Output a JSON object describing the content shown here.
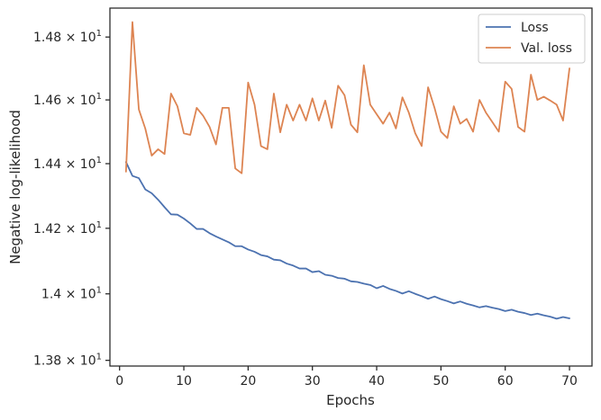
{
  "chart_data": {
    "type": "line",
    "title": "",
    "xlabel": "Epochs",
    "ylabel": "Negative log-likelihood",
    "xlim": [
      -1.5,
      73.5
    ],
    "ylim": [
      13.783,
      14.893
    ],
    "x_ticks": [
      0,
      10,
      20,
      30,
      40,
      50,
      60,
      70
    ],
    "x_tick_labels": [
      "0",
      "10",
      "20",
      "30",
      "40",
      "50",
      "60",
      "70"
    ],
    "y_ticks": [
      {
        "value": 13.8,
        "mantissa": "1.38",
        "exponent": "1"
      },
      {
        "value": 14.0,
        "mantissa": "1.4",
        "exponent": "1"
      },
      {
        "value": 14.2,
        "mantissa": "1.42",
        "exponent": "1"
      },
      {
        "value": 14.4,
        "mantissa": "1.44",
        "exponent": "1"
      },
      {
        "value": 14.6,
        "mantissa": "1.46",
        "exponent": "1"
      },
      {
        "value": 14.8,
        "mantissa": "1.48",
        "exponent": "1"
      }
    ],
    "y_scale": "log",
    "grid": false,
    "legend_position": "top-right",
    "series": [
      {
        "name": "Loss",
        "color": "#4c72b0",
        "x": [
          1,
          2,
          3,
          4,
          5,
          6,
          7,
          8,
          9,
          10,
          11,
          12,
          13,
          14,
          15,
          16,
          17,
          18,
          19,
          20,
          21,
          22,
          23,
          24,
          25,
          26,
          27,
          28,
          29,
          30,
          31,
          32,
          33,
          34,
          35,
          36,
          37,
          38,
          39,
          40,
          41,
          42,
          43,
          44,
          45,
          46,
          47,
          48,
          49,
          50,
          51,
          52,
          53,
          54,
          55,
          56,
          57,
          58,
          59,
          60,
          61,
          62,
          63,
          64,
          65,
          66,
          67,
          68,
          69,
          70
        ],
        "values": [
          14.405,
          14.362,
          14.355,
          14.32,
          14.308,
          14.288,
          14.265,
          14.243,
          14.242,
          14.23,
          14.215,
          14.198,
          14.198,
          14.185,
          14.175,
          14.166,
          14.157,
          14.145,
          14.145,
          14.135,
          14.128,
          14.118,
          14.114,
          14.104,
          14.102,
          14.092,
          14.086,
          14.077,
          14.077,
          14.066,
          14.069,
          14.058,
          14.055,
          14.048,
          14.046,
          14.038,
          14.036,
          14.031,
          14.027,
          14.017,
          14.024,
          14.015,
          14.009,
          14.001,
          14.008,
          14.0,
          13.993,
          13.985,
          13.992,
          13.984,
          13.978,
          13.971,
          13.977,
          13.97,
          13.965,
          13.959,
          13.963,
          13.958,
          13.954,
          13.948,
          13.952,
          13.946,
          13.942,
          13.936,
          13.94,
          13.935,
          13.931,
          13.925,
          13.93,
          13.926
        ]
      },
      {
        "name": "Val. loss",
        "color": "#dd8452",
        "x": [
          1,
          2,
          3,
          4,
          5,
          6,
          7,
          8,
          9,
          10,
          11,
          12,
          13,
          14,
          15,
          16,
          17,
          18,
          19,
          20,
          21,
          22,
          23,
          24,
          25,
          26,
          27,
          28,
          29,
          30,
          31,
          32,
          33,
          34,
          35,
          36,
          37,
          38,
          39,
          40,
          41,
          42,
          43,
          44,
          45,
          46,
          47,
          48,
          49,
          50,
          51,
          52,
          53,
          54,
          55,
          56,
          57,
          58,
          59,
          60,
          61,
          62,
          63,
          64,
          65,
          66,
          67,
          68,
          69,
          70
        ],
        "values": [
          14.375,
          14.848,
          14.57,
          14.51,
          14.425,
          14.445,
          14.43,
          14.62,
          14.58,
          14.495,
          14.49,
          14.575,
          14.55,
          14.515,
          14.46,
          14.575,
          14.575,
          14.385,
          14.37,
          14.655,
          14.585,
          14.455,
          14.445,
          14.62,
          14.498,
          14.585,
          14.535,
          14.585,
          14.535,
          14.605,
          14.535,
          14.598,
          14.512,
          14.645,
          14.615,
          14.522,
          14.498,
          14.71,
          14.585,
          14.555,
          14.525,
          14.56,
          14.51,
          14.608,
          14.56,
          14.495,
          14.455,
          14.64,
          14.575,
          14.5,
          14.48,
          14.58,
          14.525,
          14.54,
          14.5,
          14.6,
          14.56,
          14.53,
          14.5,
          14.658,
          14.635,
          14.515,
          14.5,
          14.68,
          14.6,
          14.61,
          14.598,
          14.585,
          14.535,
          14.7
        ]
      }
    ]
  }
}
